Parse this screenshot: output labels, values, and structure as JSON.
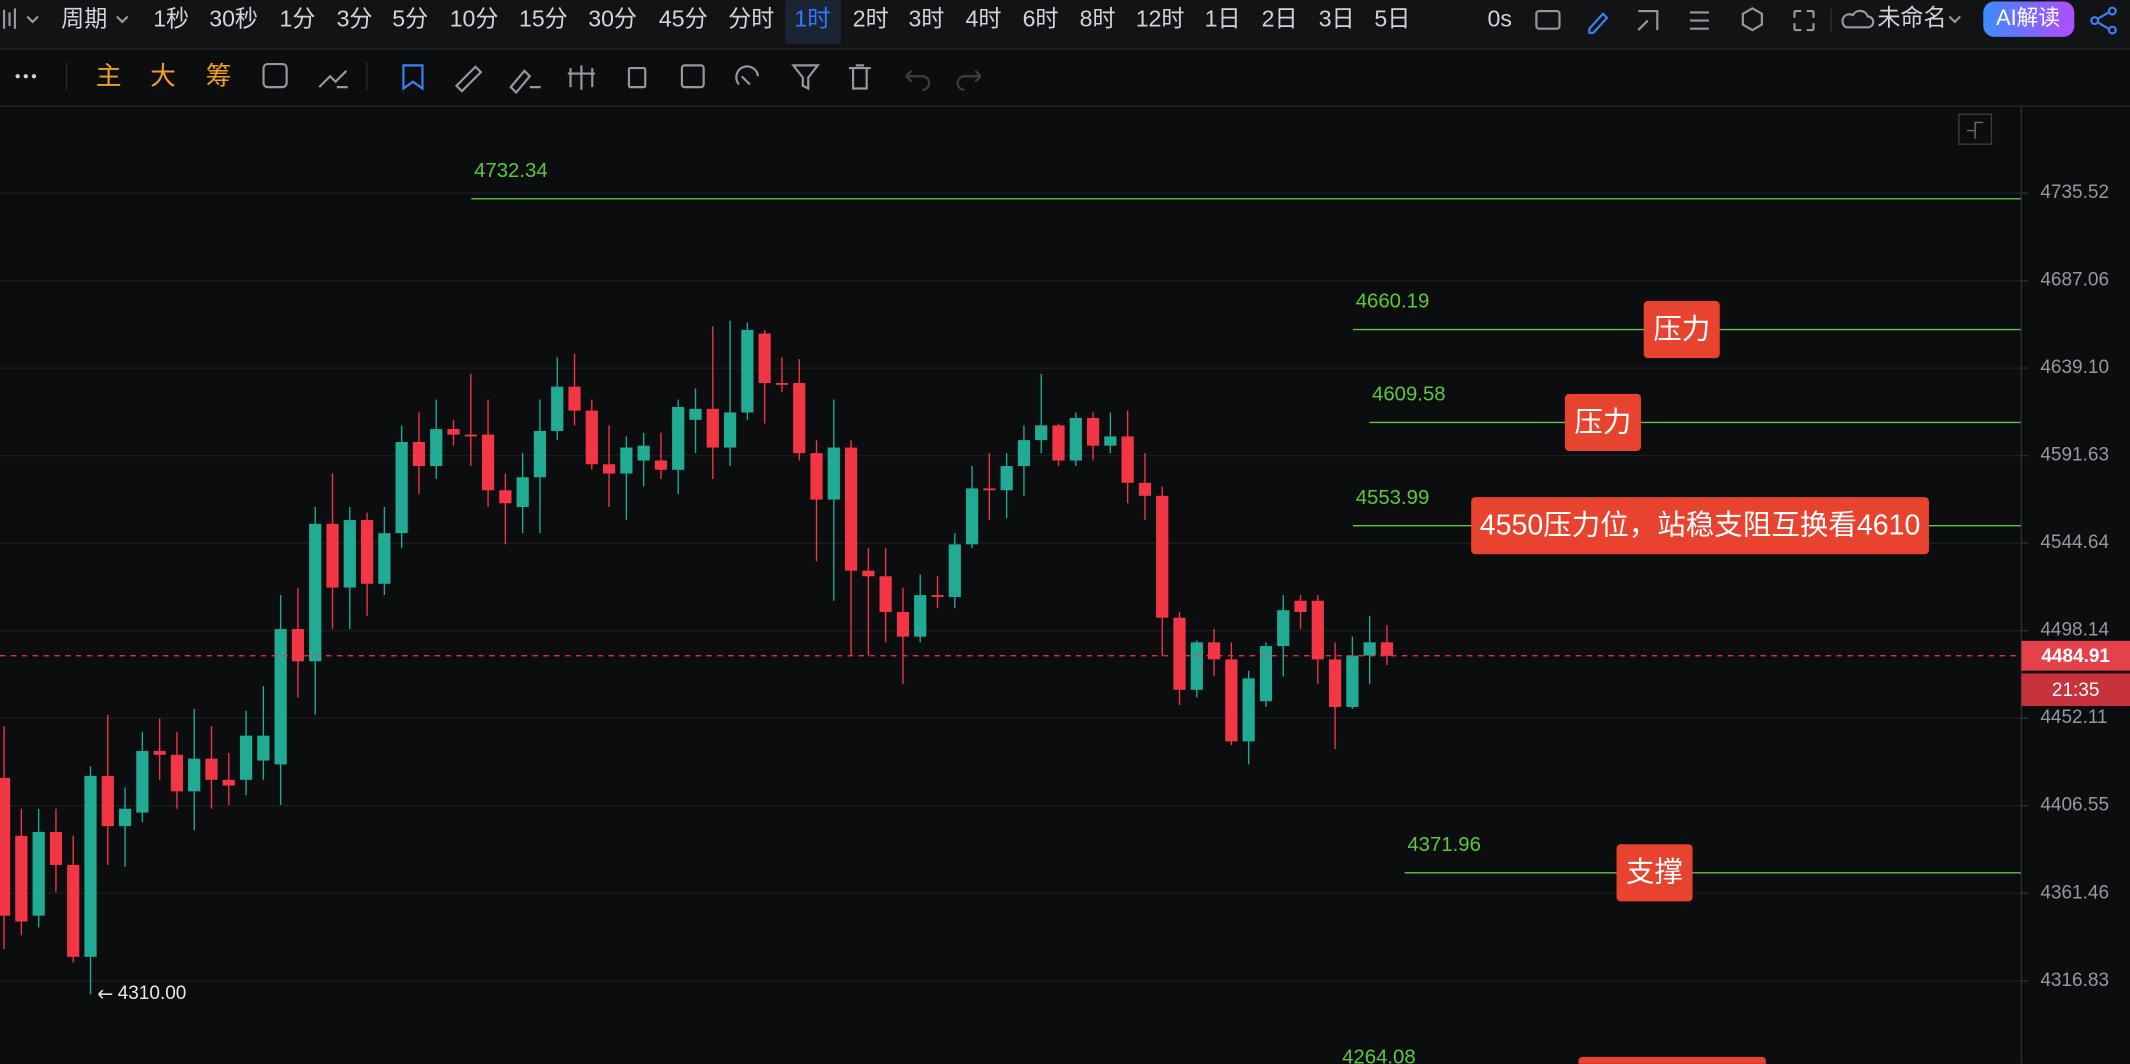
{
  "toolbar": {
    "period_label": "周期",
    "periods": [
      "1秒",
      "30秒",
      "1分",
      "3分",
      "5分",
      "10分",
      "15分",
      "30分",
      "45分",
      "分时",
      "1时",
      "2时",
      "3时",
      "4时",
      "6时",
      "8时",
      "12时",
      "1日",
      "2日",
      "3日",
      "5日"
    ],
    "active_index": 10,
    "refresh": "0s",
    "layout_name": "未命名",
    "ai_button": "AI解读",
    "indicator_buttons": [
      "主",
      "大",
      "筹"
    ]
  },
  "chart_data": {
    "type": "candlestick",
    "open": [
      4421,
      4391,
      4350,
      4393,
      4376,
      4329,
      4422,
      4396,
      4403,
      4435,
      4433,
      4414,
      4431,
      4420,
      4420,
      4430,
      4428,
      4499,
      4482,
      4555,
      4521,
      4557,
      4523,
      4550,
      4599,
      4586,
      4606,
      4603,
      4603,
      4573,
      4564,
      4580,
      4605,
      4629,
      4616,
      4587,
      4582,
      4589,
      4589,
      4584,
      4611,
      4617,
      4596,
      4615,
      4658,
      4631,
      4631,
      4593,
      4568,
      4596,
      4530,
      4527,
      4508,
      4495,
      4517,
      4516,
      4544,
      4574,
      4573,
      4586,
      4600,
      4608,
      4589,
      4612,
      4597,
      4602,
      4577,
      4570,
      4505,
      4467,
      4492,
      4483,
      4440,
      4461,
      4490,
      4514,
      4514,
      4483,
      4458,
      4485,
      4492
    ],
    "high": [
      4448,
      4405,
      4405,
      4405,
      4391,
      4427,
      4454,
      4416,
      4445,
      4452,
      4445,
      4457,
      4448,
      4434,
      4456,
      4469,
      4517,
      4521,
      4564,
      4582,
      4564,
      4561,
      4564,
      4608,
      4615,
      4622,
      4611,
      4636,
      4622,
      4582,
      4593,
      4622,
      4645,
      4647,
      4622,
      4608,
      4602,
      4604,
      4604,
      4622,
      4628,
      4662,
      4665,
      4664,
      4660,
      4645,
      4644,
      4600,
      4622,
      4600,
      4542,
      4542,
      4521,
      4528,
      4527,
      4550,
      4586,
      4593,
      4593,
      4608,
      4636,
      4609,
      4615,
      4615,
      4615,
      4616,
      4593,
      4575,
      4508,
      4493,
      4499,
      4492,
      4477,
      4492,
      4517,
      4517,
      4517,
      4492,
      4495,
      4506,
      4501
    ],
    "low": [
      4333,
      4340,
      4344,
      4362,
      4326,
      4310,
      4376,
      4375,
      4398,
      4420,
      4405,
      4394,
      4405,
      4407,
      4412,
      4420,
      4407,
      4463,
      4454,
      4499,
      4499,
      4506,
      4517,
      4542,
      4571,
      4579,
      4597,
      4586,
      4564,
      4544,
      4550,
      4550,
      4600,
      4608,
      4584,
      4564,
      4557,
      4575,
      4579,
      4571,
      4593,
      4579,
      4586,
      4611,
      4609,
      4626,
      4589,
      4535,
      4514,
      4485,
      4485,
      4492,
      4470,
      4492,
      4510,
      4510,
      4542,
      4557,
      4558,
      4570,
      4593,
      4586,
      4586,
      4589,
      4593,
      4566,
      4557,
      4485,
      4459,
      4463,
      4474,
      4438,
      4428,
      4458,
      4474,
      4499,
      4470,
      4436,
      4457,
      4470,
      4480
    ],
    "close": [
      4350,
      4347,
      4393,
      4376,
      4329,
      4422,
      4396,
      4405,
      4435,
      4433,
      4414,
      4431,
      4420,
      4417,
      4443,
      4443,
      4499,
      4482,
      4555,
      4521,
      4557,
      4523,
      4550,
      4599,
      4586,
      4606,
      4603,
      4602,
      4573,
      4566,
      4580,
      4605,
      4629,
      4616,
      4587,
      4582,
      4596,
      4597,
      4584,
      4618,
      4617,
      4596,
      4615,
      4660,
      4631,
      4630,
      4593,
      4568,
      4596,
      4530,
      4527,
      4508,
      4495,
      4517,
      4516,
      4544,
      4574,
      4573,
      4586,
      4600,
      4608,
      4589,
      4612,
      4597,
      4602,
      4577,
      4570,
      4505,
      4467,
      4492,
      4483,
      4440,
      4473,
      4490,
      4509,
      4508,
      4483,
      4458,
      4485,
      4492,
      4484.91
    ],
    "up_color": "#22ab94",
    "down_color": "#f23645",
    "log_scale": true,
    "grid": true,
    "ylim": [
      4274.9,
      4783.4
    ],
    "yticks": [
      4735.52,
      4687.06,
      {
        "value": 4639.1,
        "label": "4639.10"
      },
      4591.63,
      4544.64,
      4498.14,
      4452.11,
      4406.55,
      4361.46,
      4316.83
    ],
    "levels": [
      {
        "value": 4732.34
      },
      {
        "value": 4660.19,
        "note": "压力"
      },
      {
        "value": 4609.58,
        "note": "压力"
      },
      {
        "value": 4553.99,
        "note": "4550压力位，站稳支阻互换看4610"
      },
      {
        "value": 4371.96,
        "note": "支撑"
      },
      {
        "value": 4264.08
      }
    ],
    "level_color": "#5cc93a",
    "note_color": "#e8432f",
    "low_marker": {
      "value": 4310,
      "label": "4310.00"
    },
    "countdown": "21:35"
  }
}
